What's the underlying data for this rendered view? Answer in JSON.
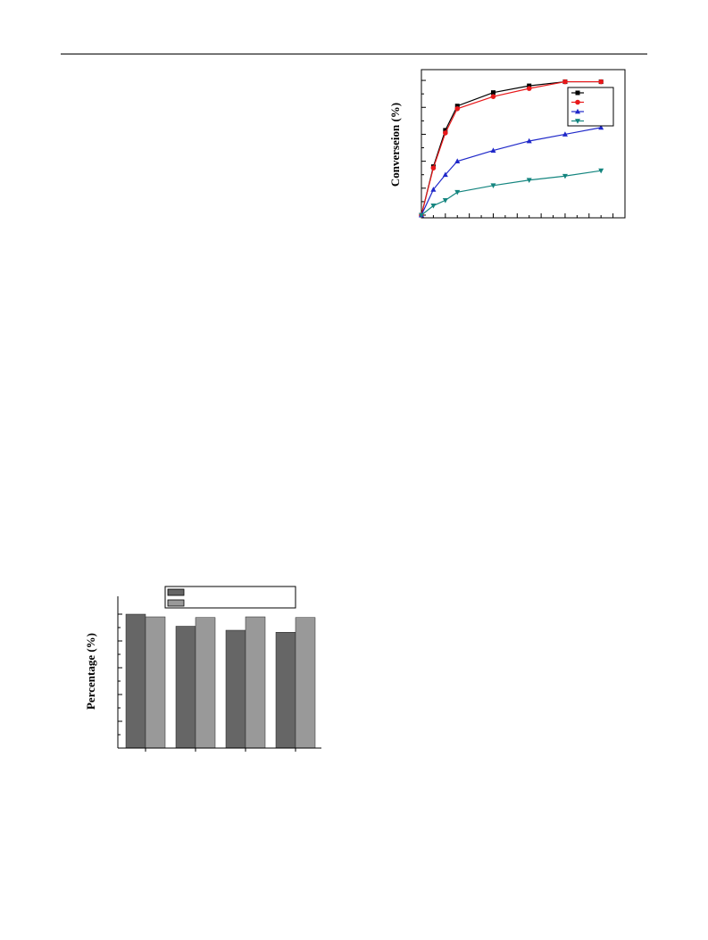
{
  "chart_data": [
    {
      "type": "line",
      "ylabel": "Converseion (%)",
      "xlabel": "",
      "grid": false,
      "legend_placement": "top-right",
      "x": [
        0,
        1,
        2,
        3,
        6,
        9,
        12,
        15
      ],
      "xlim": [
        0,
        17
      ],
      "ylim": [
        -2,
        108
      ],
      "series": [
        {
          "color": "#000000",
          "marker": "square",
          "values": [
            0,
            36,
            63,
            81,
            91,
            96,
            99,
            99
          ]
        },
        {
          "color": "#e8191b",
          "marker": "circle",
          "values": [
            0,
            35,
            61,
            79,
            88,
            94,
            99,
            99
          ]
        },
        {
          "color": "#1f28c9",
          "marker": "triangle-up",
          "values": [
            0,
            19,
            30,
            40,
            48,
            55,
            60,
            65
          ]
        },
        {
          "color": "#14857f",
          "marker": "triangle-down",
          "values": [
            0,
            7,
            11,
            17,
            22,
            26,
            29,
            33
          ]
        }
      ]
    },
    {
      "type": "bar",
      "ylabel": "Percentage (%)",
      "xlabel": "",
      "grid": false,
      "legend_placement": "top",
      "categories": [
        "",
        "",
        "",
        ""
      ],
      "ylim": [
        0,
        105
      ],
      "series": [
        {
          "color": "#666666",
          "values": [
            100,
            91,
            88,
            86.5
          ]
        },
        {
          "color": "#999999",
          "values": [
            98,
            97.5,
            98,
            97.5
          ]
        }
      ]
    }
  ]
}
